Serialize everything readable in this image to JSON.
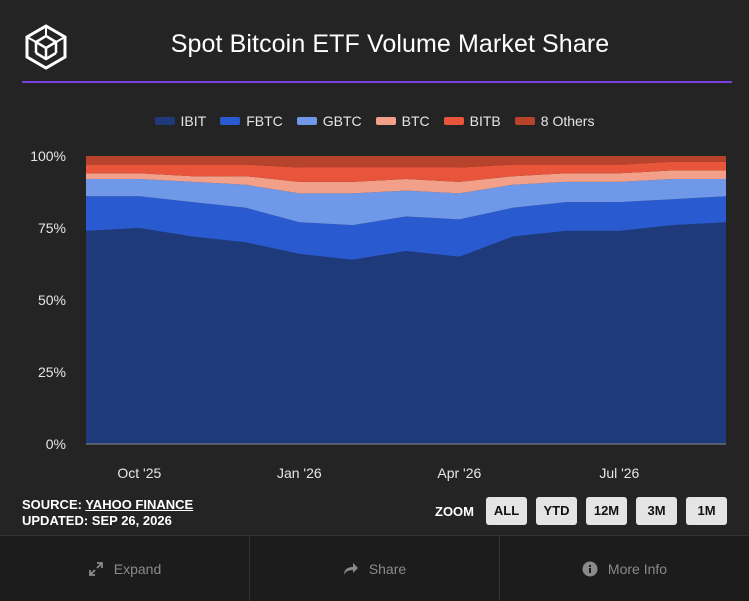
{
  "title": "Spot Bitcoin ETF Volume Market Share",
  "legend": [
    {
      "label": "IBIT",
      "color": "#1e3a7a"
    },
    {
      "label": "FBTC",
      "color": "#2a5ad0"
    },
    {
      "label": "GBTC",
      "color": "#6f99e8"
    },
    {
      "label": "BTC",
      "color": "#f2a08a"
    },
    {
      "label": "BITB",
      "color": "#e8553a"
    },
    {
      "label": "8 Others",
      "color": "#b8432c"
    }
  ],
  "footer": {
    "source_prefix": "SOURCE: ",
    "source_name": "YAHOO FINANCE",
    "updated": "UPDATED: SEP 26, 2026"
  },
  "zoom": {
    "label": "ZOOM",
    "buttons": [
      "ALL",
      "YTD",
      "12M",
      "3M",
      "1M"
    ]
  },
  "toolbar": {
    "expand": "Expand",
    "share": "Share",
    "more_info": "More Info"
  },
  "chart_data": {
    "type": "area",
    "stacked": true,
    "normalized": true,
    "x_ticks": [
      "Oct '25",
      "Jan '26",
      "Apr '26",
      "Jul '26"
    ],
    "y_ticks": [
      "0%",
      "25%",
      "50%",
      "75%",
      "100%"
    ],
    "ylim": [
      0,
      100
    ],
    "x": [
      "Sep '25",
      "Oct '25",
      "Nov '25",
      "Dec '25",
      "Jan '26",
      "Feb '26",
      "Mar '26",
      "Apr '26",
      "May '26",
      "Jun '26",
      "Jul '26",
      "Aug '26",
      "Sep '26"
    ],
    "series": [
      {
        "name": "IBIT",
        "color": "#1e3a7a",
        "values": [
          74,
          75,
          72,
          70,
          66,
          64,
          67,
          65,
          72,
          74,
          74,
          76,
          77
        ]
      },
      {
        "name": "FBTC",
        "color": "#2a5ad0",
        "values": [
          12,
          11,
          12,
          12,
          11,
          12,
          12,
          13,
          10,
          10,
          10,
          9,
          9
        ]
      },
      {
        "name": "GBTC",
        "color": "#6f99e8",
        "values": [
          6,
          6,
          7,
          8,
          10,
          11,
          9,
          9,
          8,
          7,
          7,
          7,
          6
        ]
      },
      {
        "name": "BTC",
        "color": "#f2a08a",
        "values": [
          2,
          2,
          2,
          3,
          4,
          4,
          4,
          4,
          3,
          3,
          3,
          3,
          3
        ]
      },
      {
        "name": "BITB",
        "color": "#e8553a",
        "values": [
          3,
          3,
          4,
          4,
          5,
          5,
          4,
          5,
          4,
          3,
          3,
          3,
          3
        ]
      },
      {
        "name": "8 Others",
        "color": "#b8432c",
        "values": [
          3,
          3,
          3,
          3,
          4,
          4,
          4,
          4,
          3,
          3,
          3,
          2,
          2
        ]
      }
    ],
    "grid": false,
    "legend_position": "top"
  }
}
